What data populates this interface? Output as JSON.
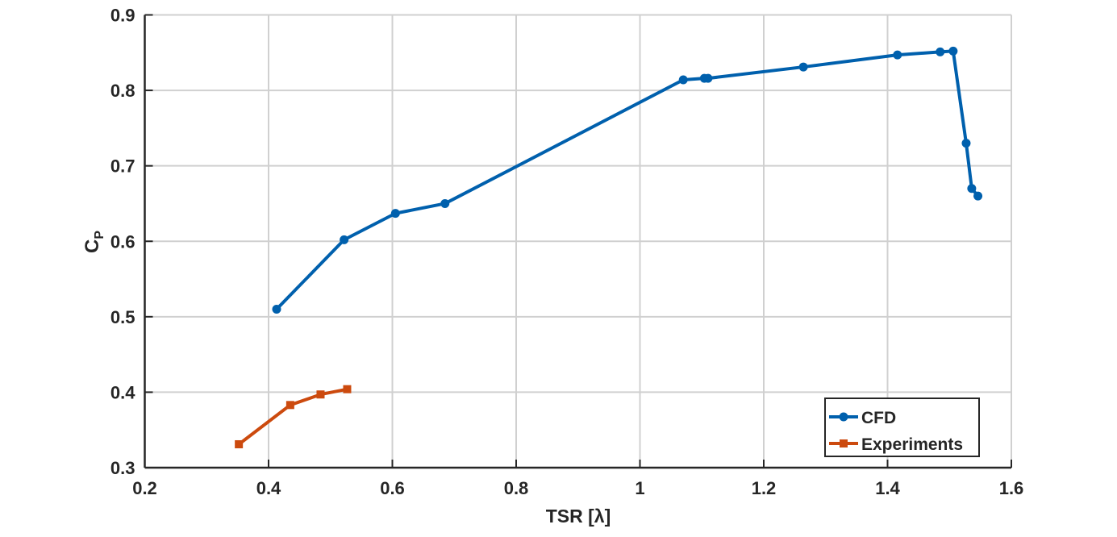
{
  "chart_data": {
    "type": "line",
    "title": "",
    "xlabel": "TSR [λ]",
    "ylabel": "C",
    "ylabel_subscript": "P",
    "xlim": [
      0.2,
      1.6
    ],
    "ylim": [
      0.3,
      0.9
    ],
    "xticks": [
      "0.2",
      "0.4",
      "0.6",
      "0.8",
      "1",
      "1.2",
      "1.4",
      "1.6"
    ],
    "yticks": [
      "0.3",
      "0.4",
      "0.5",
      "0.6",
      "0.7",
      "0.8",
      "0.9"
    ],
    "grid": true,
    "legend_position": "bottom-right",
    "series": [
      {
        "name": "CFD",
        "color": "#0060AD",
        "marker": "circle",
        "x": [
          0.413,
          0.522,
          0.605,
          0.685,
          1.07,
          1.104,
          1.11,
          1.264,
          1.416,
          1.485,
          1.506,
          1.527,
          1.536,
          1.546
        ],
        "y": [
          0.51,
          0.602,
          0.637,
          0.65,
          0.814,
          0.816,
          0.816,
          0.831,
          0.847,
          0.851,
          0.852,
          0.73,
          0.67,
          0.66
        ]
      },
      {
        "name": "Experiments",
        "color": "#CC4A0E",
        "marker": "square",
        "x": [
          0.352,
          0.435,
          0.484,
          0.527
        ],
        "y": [
          0.331,
          0.383,
          0.397,
          0.404
        ]
      }
    ]
  }
}
